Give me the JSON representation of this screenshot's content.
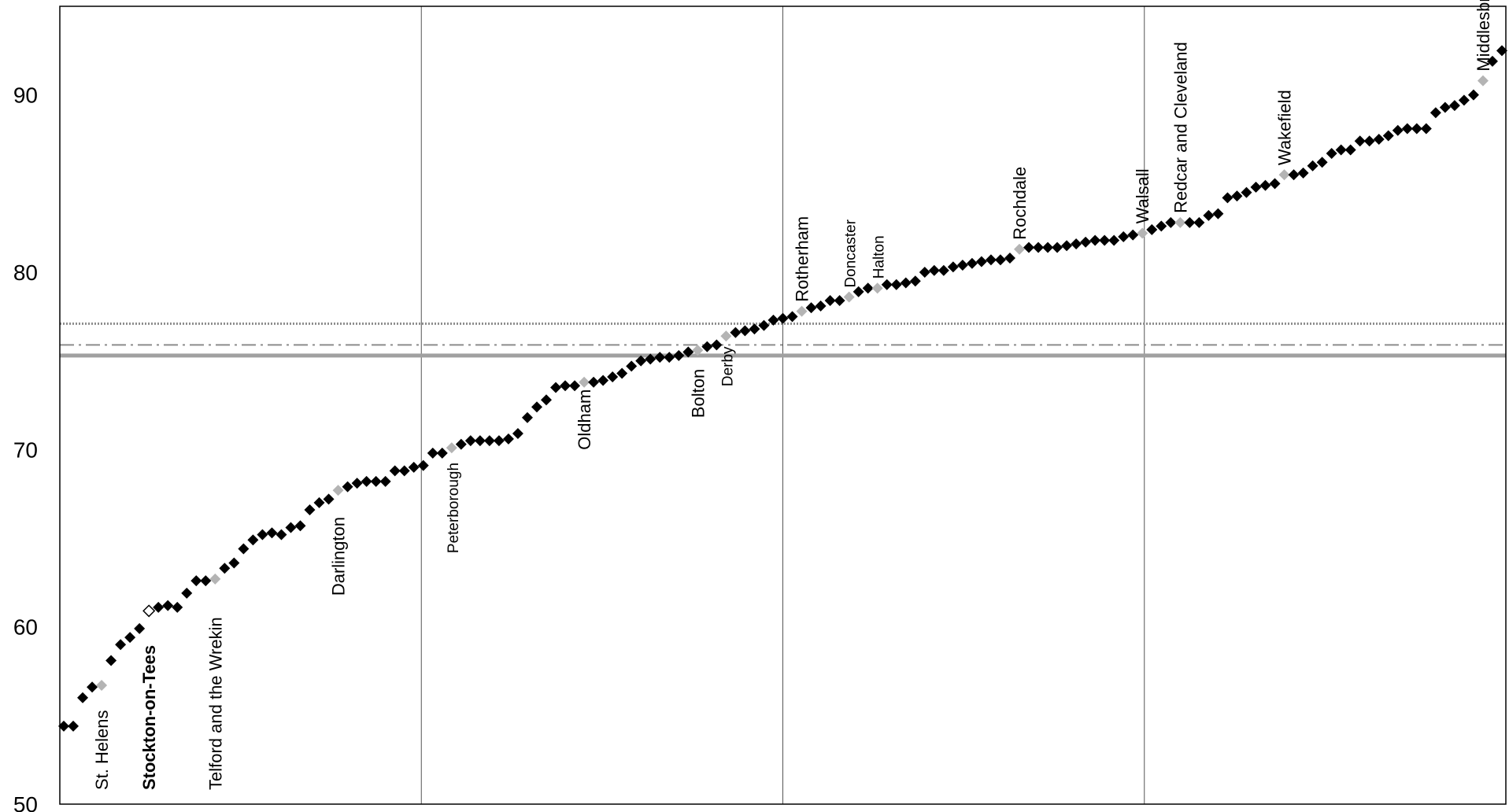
{
  "chart_data": {
    "type": "scatter",
    "title": "",
    "xlabel": "",
    "ylabel": "",
    "ylim": [
      50,
      95
    ],
    "y_ticks": [
      50,
      60,
      70,
      80,
      90
    ],
    "grid": "vertical",
    "reference_lines": [
      {
        "value": 77.1,
        "style": "dotted",
        "color": "#8c8c8c"
      },
      {
        "value": 75.9,
        "style": "dash-dot",
        "color": "#8c8c8c"
      },
      {
        "value": 75.3,
        "style": "solid-thick",
        "color": "#a0a0a0"
      }
    ],
    "colors": {
      "point": "#000000",
      "labelled_point": "#b4b4b4",
      "highlight_text": "#1010cc"
    },
    "values": [
      54.4,
      54.4,
      56.0,
      56.6,
      56.7,
      58.1,
      59.0,
      59.4,
      59.9,
      60.9,
      61.1,
      61.2,
      61.1,
      61.9,
      62.6,
      62.6,
      62.7,
      63.3,
      63.6,
      64.4,
      64.9,
      65.2,
      65.3,
      65.2,
      65.6,
      65.7,
      66.6,
      67.0,
      67.2,
      67.7,
      67.9,
      68.1,
      68.2,
      68.2,
      68.2,
      68.8,
      68.8,
      69.0,
      69.1,
      69.8,
      69.8,
      70.1,
      70.3,
      70.5,
      70.5,
      70.5,
      70.5,
      70.6,
      70.9,
      71.8,
      72.4,
      72.8,
      73.5,
      73.6,
      73.6,
      73.8,
      73.8,
      73.9,
      74.1,
      74.3,
      74.7,
      75.0,
      75.1,
      75.2,
      75.2,
      75.3,
      75.5,
      75.6,
      75.8,
      75.9,
      76.4,
      76.6,
      76.7,
      76.8,
      77.0,
      77.3,
      77.4,
      77.5,
      77.8,
      78.0,
      78.1,
      78.4,
      78.4,
      78.6,
      78.9,
      79.1,
      79.1,
      79.3,
      79.3,
      79.4,
      79.5,
      80.0,
      80.1,
      80.1,
      80.3,
      80.4,
      80.5,
      80.6,
      80.7,
      80.7,
      80.8,
      81.3,
      81.4,
      81.4,
      81.4,
      81.4,
      81.5,
      81.6,
      81.7,
      81.8,
      81.8,
      81.8,
      82.0,
      82.1,
      82.2,
      82.4,
      82.6,
      82.8,
      82.8,
      82.8,
      82.8,
      83.2,
      83.3,
      84.2,
      84.3,
      84.5,
      84.8,
      84.9,
      85.0,
      85.5,
      85.5,
      85.6,
      86.0,
      86.2,
      86.7,
      86.9,
      86.9,
      87.4,
      87.4,
      87.5,
      87.7,
      88.0,
      88.1,
      88.1,
      88.1,
      89.0,
      89.3,
      89.4,
      89.7,
      90.0,
      90.8,
      91.9,
      92.5
    ],
    "labelled_points": [
      {
        "index": 4,
        "name": "St. Helens",
        "size": "normal"
      },
      {
        "index": 9,
        "name": "Stockton-on-Tees",
        "size": "normal",
        "highlight": true
      },
      {
        "index": 16,
        "name": "Telford and the Wrekin",
        "size": "normal"
      },
      {
        "index": 29,
        "name": "Darlington",
        "size": "normal"
      },
      {
        "index": 41,
        "name": "Peterborough",
        "size": "small"
      },
      {
        "index": 55,
        "name": "Oldham",
        "size": "normal"
      },
      {
        "index": 67,
        "name": "Bolton",
        "size": "normal"
      },
      {
        "index": 70,
        "name": "Derby",
        "size": "small"
      },
      {
        "index": 78,
        "name": "Rotherham",
        "size": "normal"
      },
      {
        "index": 83,
        "name": "Doncaster",
        "size": "small"
      },
      {
        "index": 86,
        "name": "Halton",
        "size": "small"
      },
      {
        "index": 101,
        "name": "Rochdale",
        "size": "normal"
      },
      {
        "index": 114,
        "name": "Walsall",
        "size": "normal"
      },
      {
        "index": 118,
        "name": "Redcar and Cleveland",
        "size": "normal"
      },
      {
        "index": 129,
        "name": "Wakefield",
        "size": "normal"
      },
      {
        "index": 150,
        "name": "Middlesbrough",
        "size": "normal"
      }
    ]
  }
}
